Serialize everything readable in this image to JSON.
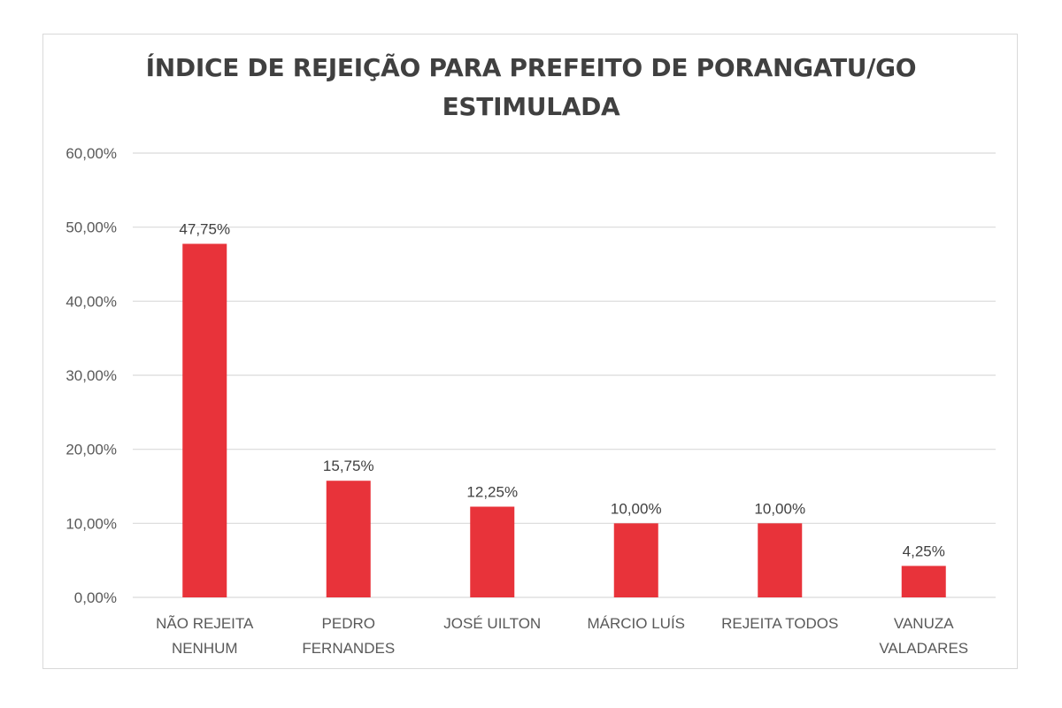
{
  "chart_data": {
    "type": "bar",
    "title_lines": [
      "ÍNDICE DE REJEIÇÃO PARA PREFEITO DE PORANGATU/GO",
      "ESTIMULADA"
    ],
    "categories": [
      [
        "NÃO REJEITA",
        "NENHUM"
      ],
      [
        "PEDRO",
        "FERNANDES"
      ],
      [
        "JOSÉ UILTON"
      ],
      [
        "MÁRCIO LUÍS"
      ],
      [
        "REJEITA TODOS"
      ],
      [
        "VANUZA",
        "VALADARES"
      ]
    ],
    "values": [
      47.75,
      15.75,
      12.25,
      10.0,
      10.0,
      4.25
    ],
    "value_labels": [
      "47,75%",
      "15,75%",
      "12,25%",
      "10,00%",
      "10,00%",
      "4,25%"
    ],
    "y_ticks": [
      0,
      10,
      20,
      30,
      40,
      50,
      60
    ],
    "y_tick_labels": [
      "0,00%",
      "10,00%",
      "20,00%",
      "30,00%",
      "40,00%",
      "50,00%",
      "60,00%"
    ],
    "ylim": [
      0,
      60
    ],
    "grid": true,
    "legend": "none",
    "bar_color": "#e8333a",
    "grid_color": "#d9d9d9"
  }
}
